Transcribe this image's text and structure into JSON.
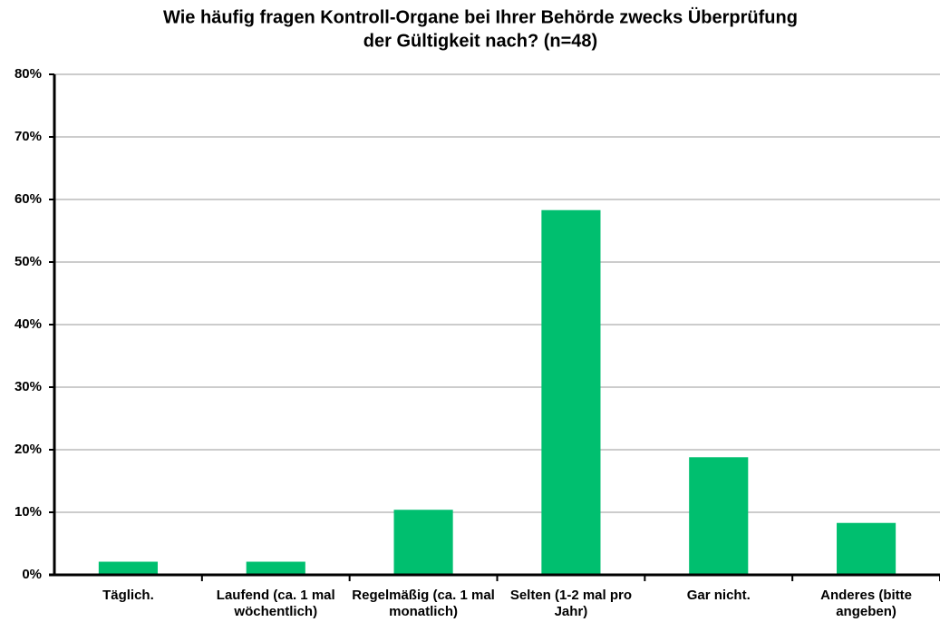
{
  "chart_data": {
    "type": "bar",
    "title": [
      "Wie häufig fragen Kontroll-Organe bei Ihrer Behörde zwecks Überprüfung",
      "der Gültigkeit nach? (n=48)"
    ],
    "categories": [
      "Täglich.",
      "Laufend (ca. 1 mal wöchentlich)",
      "Regelmäßig (ca. 1 mal monatlich)",
      "Selten (1-2 mal pro Jahr)",
      "Gar nicht.",
      "Anderes (bitte angeben)"
    ],
    "values": [
      2.1,
      2.1,
      10.4,
      58.3,
      18.8,
      8.3
    ],
    "color": "#00bf6f",
    "ylim": [
      0,
      80
    ],
    "yticks": [
      {
        "value": 0,
        "label": "0%"
      },
      {
        "value": 10,
        "label": "10%"
      },
      {
        "value": 20,
        "label": "20%"
      },
      {
        "value": 30,
        "label": "30%"
      },
      {
        "value": 40,
        "label": "40%"
      },
      {
        "value": 50,
        "label": "50%"
      },
      {
        "value": 60,
        "label": "60%"
      },
      {
        "value": 70,
        "label": "70%"
      },
      {
        "value": 80,
        "label": "80%"
      }
    ],
    "grid": true
  }
}
